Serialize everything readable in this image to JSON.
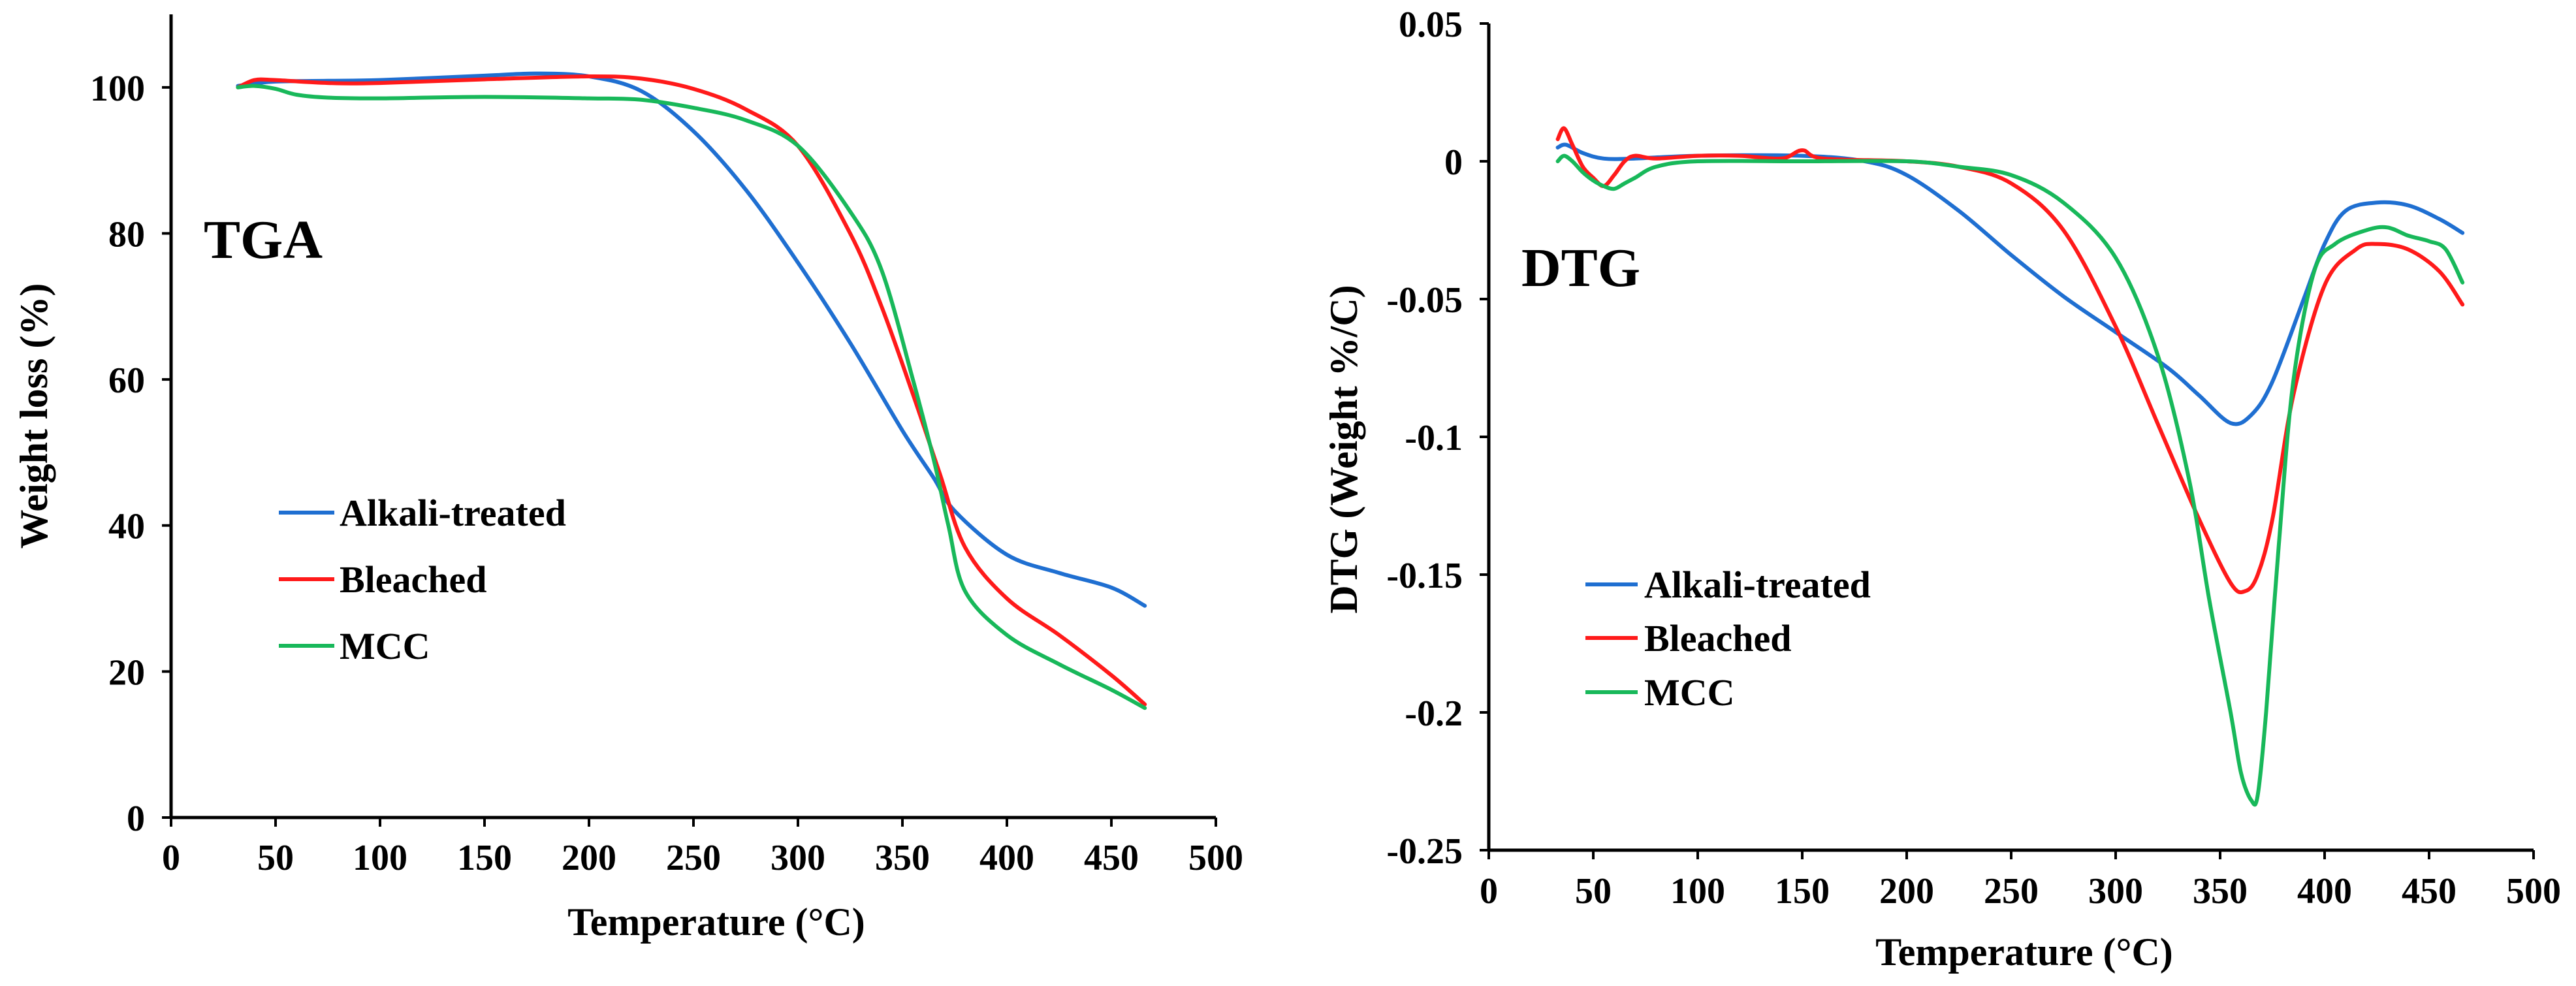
{
  "chart_data": [
    {
      "type": "line",
      "panel_label": "TGA",
      "xlabel": "Temperature  (°C)",
      "ylabel": "Weight loss (%)",
      "xlim": [
        0,
        500
      ],
      "ylim": [
        0,
        110
      ],
      "xticks": [
        0,
        50,
        100,
        150,
        200,
        250,
        300,
        350,
        400,
        450,
        500
      ],
      "yticks": [
        0,
        20,
        40,
        60,
        80,
        100
      ],
      "ytick_labels": [
        "0",
        "20",
        "40",
        "60",
        "80",
        "100"
      ],
      "grid": false,
      "legend_position": "middle-left",
      "series": [
        {
          "name": "Alkali-treated",
          "color": "#1f6fd1",
          "x": [
            32,
            40,
            50,
            75,
            100,
            150,
            175,
            200,
            225,
            250,
            275,
            300,
            325,
            350,
            365,
            375,
            400,
            425,
            450,
            466
          ],
          "y": [
            100.2,
            100.5,
            100.8,
            100.9,
            101.0,
            101.6,
            101.9,
            101.5,
            99.5,
            94.0,
            86.0,
            76.0,
            65.0,
            53.0,
            46.5,
            42.0,
            36.0,
            33.5,
            31.5,
            29.0
          ]
        },
        {
          "name": "Bleached",
          "color": "#ff1a1a",
          "x": [
            32,
            40,
            50,
            75,
            100,
            150,
            200,
            225,
            250,
            275,
            300,
            325,
            340,
            355,
            368,
            380,
            400,
            425,
            450,
            466
          ],
          "y": [
            100.0,
            101.0,
            101.0,
            100.6,
            100.6,
            101.1,
            101.5,
            101.2,
            99.8,
            97.0,
            92.0,
            80.0,
            70.0,
            58.0,
            47.0,
            37.0,
            30.0,
            25.0,
            19.5,
            15.5
          ]
        },
        {
          "name": "MCC",
          "color": "#18b85a",
          "x": [
            32,
            40,
            50,
            60,
            75,
            100,
            150,
            200,
            225,
            250,
            275,
            300,
            325,
            340,
            355,
            365,
            372,
            380,
            400,
            425,
            450,
            466
          ],
          "y": [
            100.0,
            100.2,
            99.8,
            99.0,
            98.6,
            98.5,
            98.7,
            98.5,
            98.3,
            97.2,
            95.5,
            92.0,
            83.0,
            75.0,
            60.0,
            49.0,
            40.0,
            31.0,
            25.0,
            21.0,
            17.5,
            15.0
          ]
        }
      ]
    },
    {
      "type": "line",
      "panel_label": "DTG",
      "xlabel": "Temperature  (°C)",
      "ylabel": "DTG  (Weight %/C)",
      "xlim": [
        0,
        500
      ],
      "ylim": [
        -0.25,
        0.05
      ],
      "xticks": [
        0,
        50,
        100,
        150,
        200,
        250,
        300,
        350,
        400,
        450,
        500
      ],
      "yticks": [
        -0.25,
        -0.2,
        -0.15,
        -0.1,
        -0.05,
        0,
        0.05
      ],
      "ytick_labels": [
        "-0.25",
        "-0.2",
        "-0.15",
        "-0.1",
        "-0.05",
        "0",
        "0.05"
      ],
      "grid": false,
      "legend_position": "middle-left",
      "series": [
        {
          "name": "Alkali-treated",
          "color": "#1f6fd1",
          "x": [
            33,
            37,
            45,
            55,
            70,
            100,
            150,
            180,
            200,
            225,
            250,
            275,
            300,
            325,
            340,
            355,
            365,
            375,
            390,
            400,
            410,
            425,
            440,
            455,
            466
          ],
          "y": [
            0.005,
            0.006,
            0.003,
            0.001,
            0.001,
            0.002,
            0.002,
            0.0,
            -0.005,
            -0.018,
            -0.034,
            -0.049,
            -0.062,
            -0.075,
            -0.085,
            -0.095,
            -0.092,
            -0.08,
            -0.05,
            -0.03,
            -0.018,
            -0.015,
            -0.016,
            -0.021,
            -0.026
          ]
        },
        {
          "name": "Bleached",
          "color": "#ff1a1a",
          "x": [
            33,
            36,
            40,
            45,
            50,
            55,
            60,
            65,
            70,
            80,
            100,
            120,
            140,
            150,
            160,
            200,
            225,
            250,
            275,
            300,
            320,
            340,
            355,
            362,
            368,
            375,
            385,
            400,
            415,
            425,
            440,
            455,
            466
          ],
          "y": [
            0.008,
            0.012,
            0.006,
            -0.002,
            -0.006,
            -0.009,
            -0.005,
            0.0,
            0.002,
            0.001,
            0.002,
            0.002,
            0.001,
            0.004,
            0.001,
            0.0,
            -0.002,
            -0.008,
            -0.025,
            -0.06,
            -0.095,
            -0.13,
            -0.153,
            -0.156,
            -0.15,
            -0.13,
            -0.085,
            -0.045,
            -0.032,
            -0.03,
            -0.032,
            -0.04,
            -0.052
          ]
        },
        {
          "name": "MCC",
          "color": "#18b85a",
          "x": [
            33,
            36,
            40,
            45,
            50,
            55,
            60,
            65,
            70,
            80,
            100,
            150,
            200,
            225,
            250,
            275,
            300,
            320,
            335,
            345,
            355,
            360,
            365,
            368,
            372,
            378,
            385,
            395,
            405,
            420,
            430,
            440,
            450,
            458,
            466
          ],
          "y": [
            0.0,
            0.002,
            0.0,
            -0.004,
            -0.007,
            -0.009,
            -0.01,
            -0.008,
            -0.006,
            -0.002,
            0.0,
            0.0,
            0.0,
            -0.002,
            -0.005,
            -0.015,
            -0.035,
            -0.07,
            -0.115,
            -0.16,
            -0.2,
            -0.222,
            -0.232,
            -0.23,
            -0.2,
            -0.14,
            -0.08,
            -0.04,
            -0.03,
            -0.025,
            -0.024,
            -0.027,
            -0.029,
            -0.032,
            -0.044
          ]
        }
      ]
    }
  ]
}
